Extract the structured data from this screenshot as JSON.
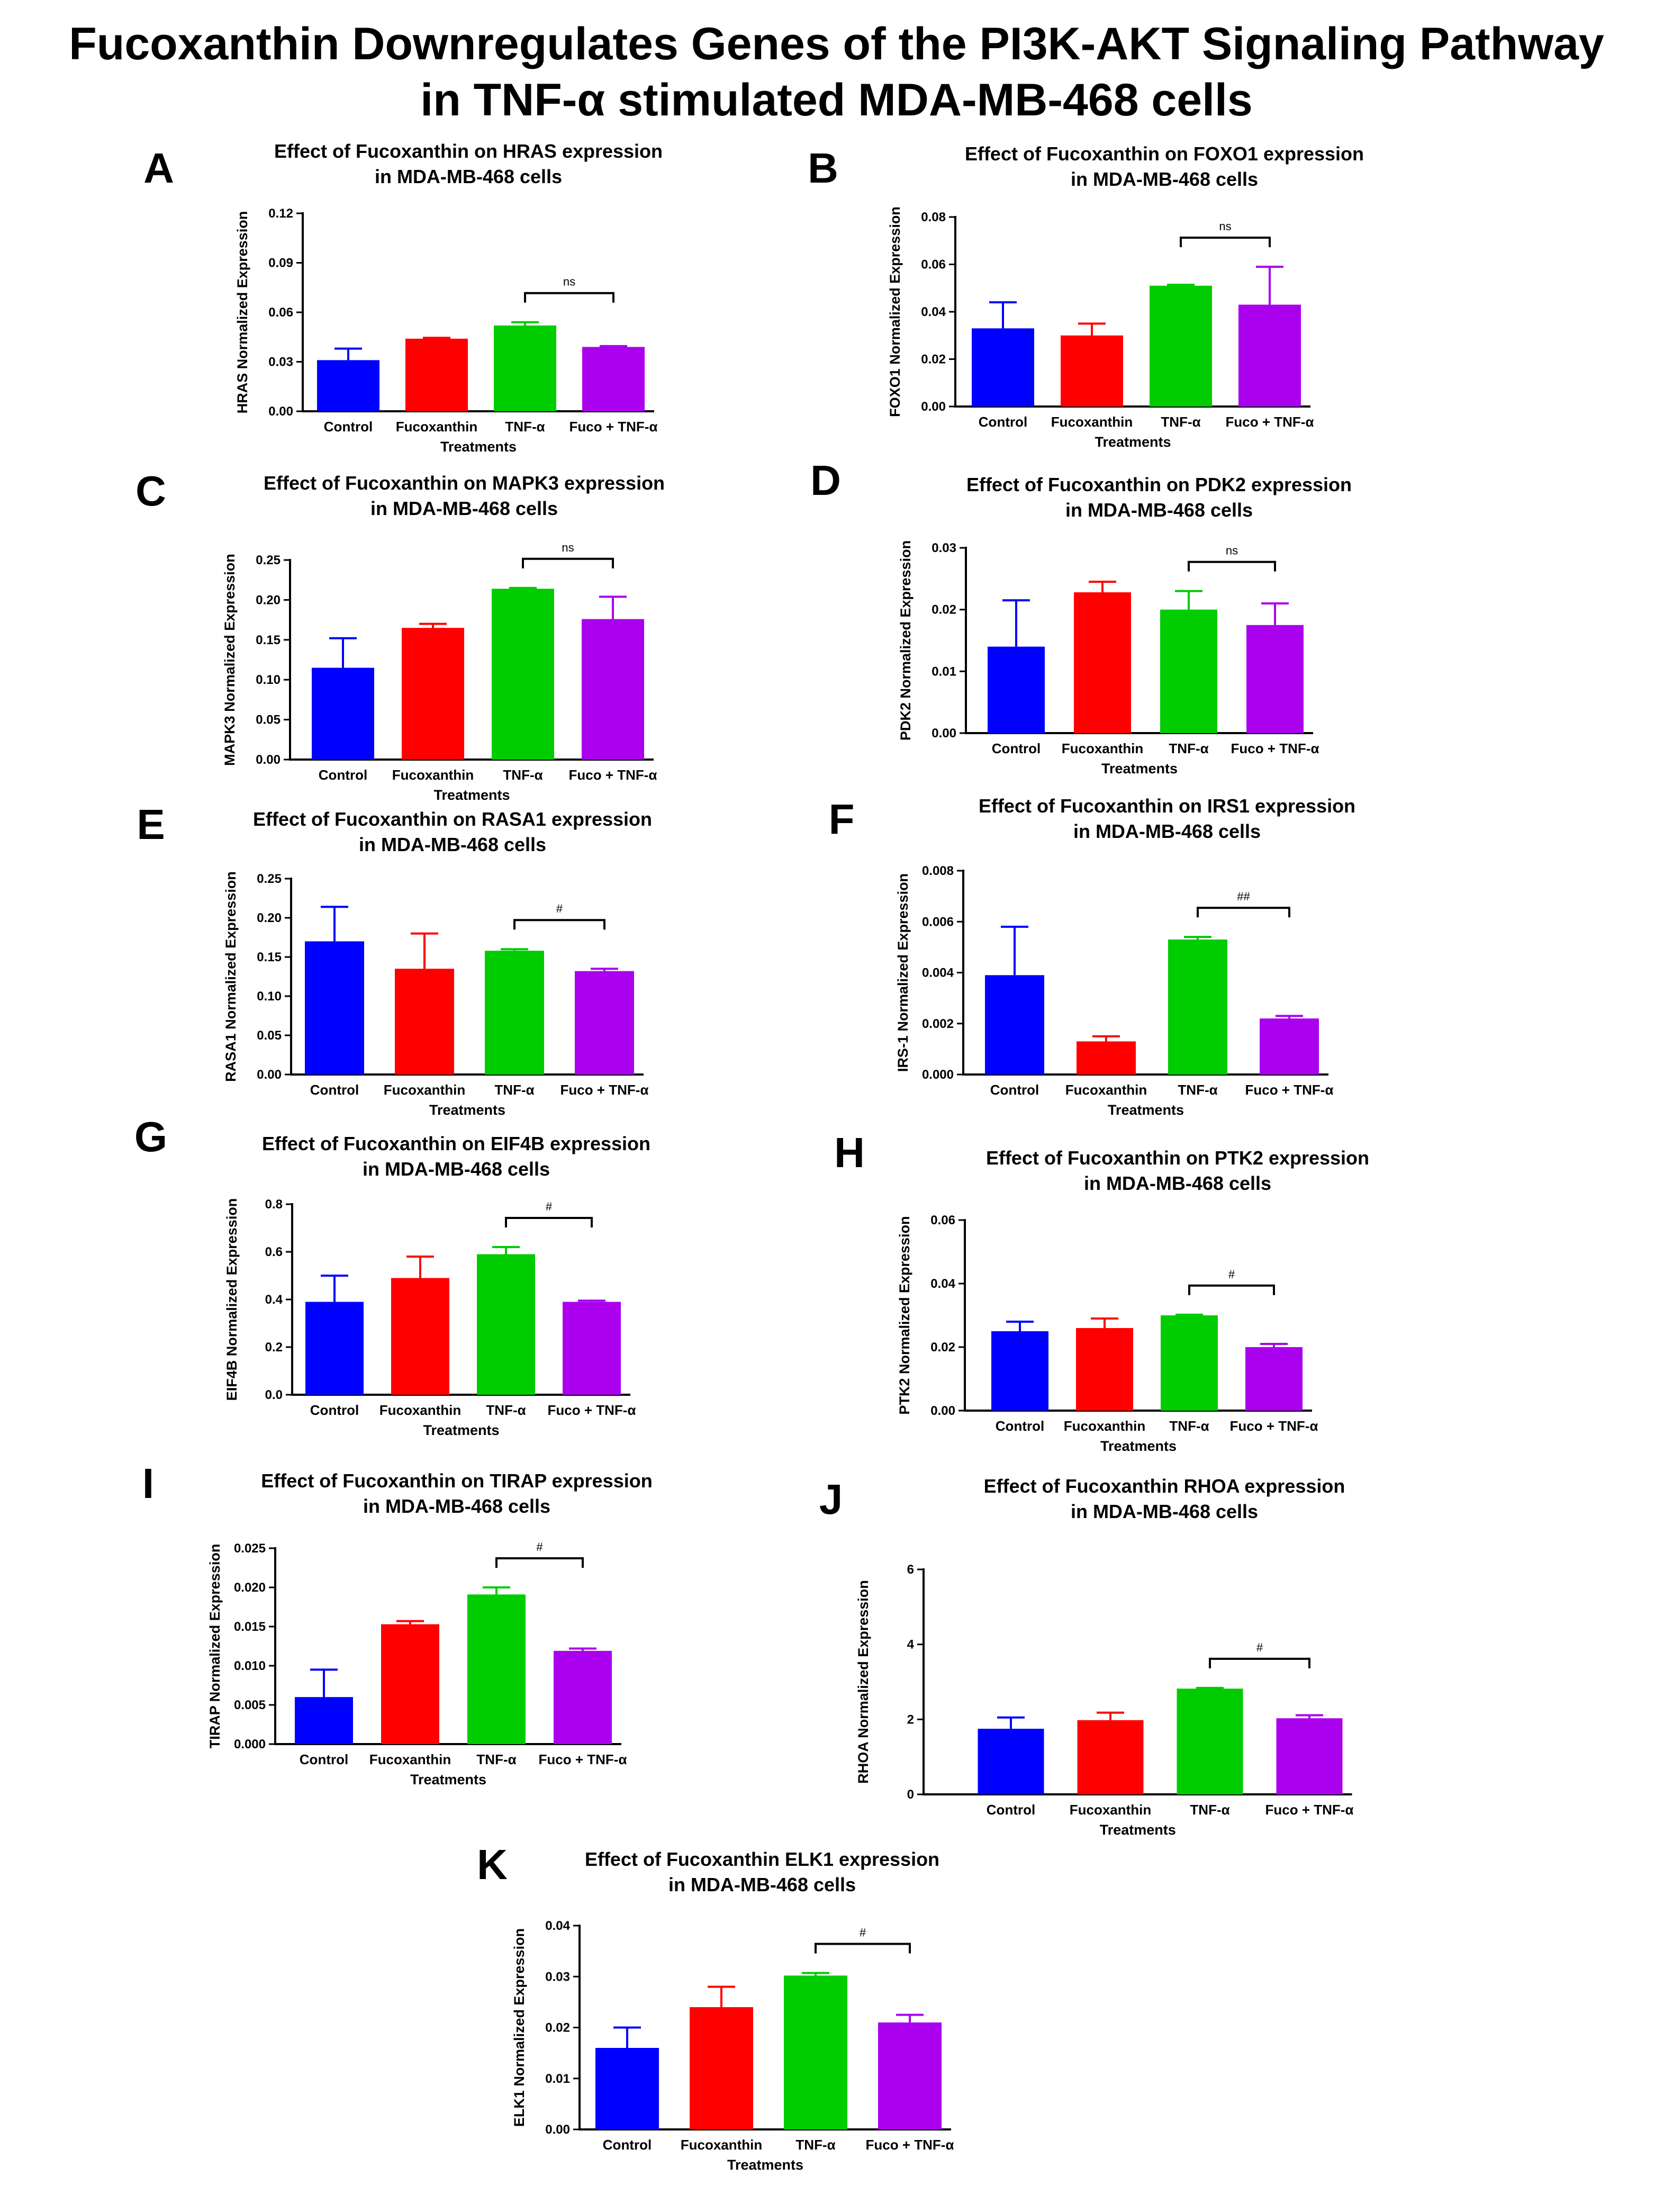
{
  "page_title": {
    "line1": "Fucoxanthin Downregulates Genes of the PI3K-AKT Signaling Pathway",
    "line2": "in TNF-α stimulated MDA-MB-468 cells"
  },
  "colors": [
    "#0000ff",
    "#ff0000",
    "#00cc00",
    "#aa00ee"
  ],
  "chart_data": [
    {
      "type": "bar",
      "panel": "A",
      "title": "Effect of Fucoxanthin on HRAS expression",
      "subtitle": "in MDA-MB-468 cells",
      "xlabel": "Treatments",
      "ylabel": "HRAS Normalized Expression",
      "categories": [
        "Control",
        "Fucoxanthin",
        "TNF-α",
        "Fuco + TNF-α"
      ],
      "values": [
        0.031,
        0.044,
        0.052,
        0.039
      ],
      "errors": [
        0.007,
        0.0005,
        0.002,
        0.0005
      ],
      "ylim": [
        0,
        0.12
      ],
      "yticks": [
        "0.00",
        "0.03",
        "0.06",
        "0.09",
        "0.12"
      ],
      "significance": "ns"
    },
    {
      "type": "bar",
      "panel": "B",
      "title": "Effect of Fucoxanthin on FOXO1 expression",
      "subtitle": "in MDA-MB-468 cells",
      "xlabel": "Treatments",
      "ylabel": "FOXO1 Normalized Expression",
      "categories": [
        "Control",
        "Fucoxanthin",
        "TNF-α",
        "Fuco + TNF-α"
      ],
      "values": [
        0.033,
        0.03,
        0.051,
        0.043
      ],
      "errors": [
        0.011,
        0.005,
        0.0004,
        0.016
      ],
      "ylim": [
        0,
        0.08
      ],
      "yticks": [
        "0.00",
        "0.02",
        "0.04",
        "0.06",
        "0.08"
      ],
      "significance": "ns"
    },
    {
      "type": "bar",
      "panel": "C",
      "title": "Effect of Fucoxanthin on MAPK3 expression",
      "subtitle": "in MDA-MB-468 cells",
      "xlabel": "Treatments",
      "ylabel": "MAPK3 Normalized Expression",
      "categories": [
        "Control",
        "Fucoxanthin",
        "TNF-α",
        "Fuco + TNF-α"
      ],
      "values": [
        0.115,
        0.165,
        0.214,
        0.176
      ],
      "errors": [
        0.037,
        0.005,
        0.001,
        0.028
      ],
      "ylim": [
        0,
        0.25
      ],
      "yticks": [
        "0.00",
        "0.05",
        "0.10",
        "0.15",
        "0.20",
        "0.25"
      ],
      "significance": "ns"
    },
    {
      "type": "bar",
      "panel": "D",
      "title": "Effect of Fucoxanthin on PDK2 expression",
      "subtitle": "in MDA-MB-468 cells",
      "xlabel": "Treatments",
      "ylabel": "PDK2 Normalized Expression",
      "categories": [
        "Control",
        "Fucoxanthin",
        "TNF-α",
        "Fuco + TNF-α"
      ],
      "values": [
        0.014,
        0.0228,
        0.02,
        0.0175
      ],
      "errors": [
        0.0075,
        0.0017,
        0.003,
        0.0035
      ],
      "ylim": [
        0,
        0.03
      ],
      "yticks": [
        "0.00",
        "0.01",
        "0.02",
        "0.03"
      ],
      "significance": "ns"
    },
    {
      "type": "bar",
      "panel": "E",
      "title": "Effect of Fucoxanthin on RASA1 expression",
      "subtitle": "in MDA-MB-468 cells",
      "xlabel": "Treatments",
      "ylabel": "RASA1 Normalized Expression",
      "categories": [
        "Control",
        "Fucoxanthin",
        "TNF-α",
        "Fuco + TNF-α"
      ],
      "values": [
        0.17,
        0.135,
        0.158,
        0.132
      ],
      "errors": [
        0.044,
        0.045,
        0.002,
        0.003
      ],
      "ylim": [
        0,
        0.25
      ],
      "yticks": [
        "0.00",
        "0.05",
        "0.10",
        "0.15",
        "0.20",
        "0.25"
      ],
      "significance": "#"
    },
    {
      "type": "bar",
      "panel": "F",
      "title": "Effect of Fucoxanthin on IRS1 expression",
      "subtitle": "in MDA-MB-468 cells",
      "xlabel": "Treatments",
      "ylabel": "IRS-1 Normalized Expression",
      "categories": [
        "Control",
        "Fucoxanthin",
        "TNF-α",
        "Fuco + TNF-α"
      ],
      "values": [
        0.0039,
        0.0013,
        0.0053,
        0.0022
      ],
      "errors": [
        0.0019,
        0.0002,
        0.0001,
        0.0001
      ],
      "ylim": [
        0,
        0.008
      ],
      "yticks": [
        "0.000",
        "0.002",
        "0.004",
        "0.006",
        "0.008"
      ],
      "significance": "##"
    },
    {
      "type": "bar",
      "panel": "G",
      "title": "Effect of Fucoxanthin on EIF4B expression",
      "subtitle": "in MDA-MB-468 cells",
      "xlabel": "Treatments",
      "ylabel": "EIF4B Normalized Expression",
      "categories": [
        "Control",
        "Fucoxanthin",
        "TNF-α",
        "Fuco + TNF-α"
      ],
      "values": [
        0.39,
        0.49,
        0.59,
        0.39
      ],
      "errors": [
        0.11,
        0.09,
        0.03,
        0.005
      ],
      "ylim": [
        0,
        0.8
      ],
      "yticks": [
        "0.0",
        "0.2",
        "0.4",
        "0.6",
        "0.8"
      ],
      "significance": "#"
    },
    {
      "type": "bar",
      "panel": "H",
      "title": "Effect of Fucoxanthin on PTK2 expression",
      "subtitle": "in MDA-MB-468 cells",
      "xlabel": "Treatments",
      "ylabel": "PTK2 Normalized Expression",
      "categories": [
        "Control",
        "Fucoxanthin",
        "TNF-α",
        "Fuco + TNF-α"
      ],
      "values": [
        0.025,
        0.026,
        0.03,
        0.02
      ],
      "errors": [
        0.003,
        0.003,
        0.0002,
        0.001
      ],
      "ylim": [
        0,
        0.06
      ],
      "yticks": [
        "0.00",
        "0.02",
        "0.04",
        "0.06"
      ],
      "significance": "#"
    },
    {
      "type": "bar",
      "panel": "I",
      "title": "Effect of Fucoxanthin on TIRAP expression",
      "subtitle": "in MDA-MB-468 cells",
      "xlabel": "Treatments",
      "ylabel": "TIRAP Normalized Expression",
      "categories": [
        "Control",
        "Fucoxanthin",
        "TNF-α",
        "Fuco + TNF-α"
      ],
      "values": [
        0.006,
        0.0153,
        0.0191,
        0.0119
      ],
      "errors": [
        0.0035,
        0.0004,
        0.0009,
        0.0003
      ],
      "ylim": [
        0,
        0.025
      ],
      "yticks": [
        "0.000",
        "0.005",
        "0.010",
        "0.015",
        "0.020",
        "0.025"
      ],
      "significance": "#"
    },
    {
      "type": "bar",
      "panel": "J",
      "title": "Effect of Fucoxanthin RHOA expression",
      "subtitle": "in MDA-MB-468 cells",
      "xlabel": "Treatments",
      "ylabel": "RHOA Normalized Expression",
      "categories": [
        "Control",
        "Fucoxanthin",
        "TNF-α",
        "Fuco + TNF-α"
      ],
      "values": [
        1.75,
        1.98,
        2.82,
        2.03
      ],
      "errors": [
        0.3,
        0.2,
        0.02,
        0.08
      ],
      "ylim": [
        0,
        6
      ],
      "yticks": [
        "0",
        "2",
        "4",
        "6"
      ],
      "significance": "#"
    },
    {
      "type": "bar",
      "panel": "K",
      "title": "Effect of Fucoxanthin ELK1 expression",
      "subtitle": "in MDA-MB-468 cells",
      "xlabel": "Treatments",
      "ylabel": "ELK1 Normalized Expression",
      "categories": [
        "Control",
        "Fucoxanthin",
        "TNF-α",
        "Fuco + TNF-α"
      ],
      "values": [
        0.016,
        0.024,
        0.0302,
        0.021
      ],
      "errors": [
        0.004,
        0.004,
        0.0005,
        0.0015
      ],
      "ylim": [
        0,
        0.04
      ],
      "yticks": [
        "0.00",
        "0.01",
        "0.02",
        "0.03",
        "0.04"
      ],
      "significance": "#"
    }
  ]
}
